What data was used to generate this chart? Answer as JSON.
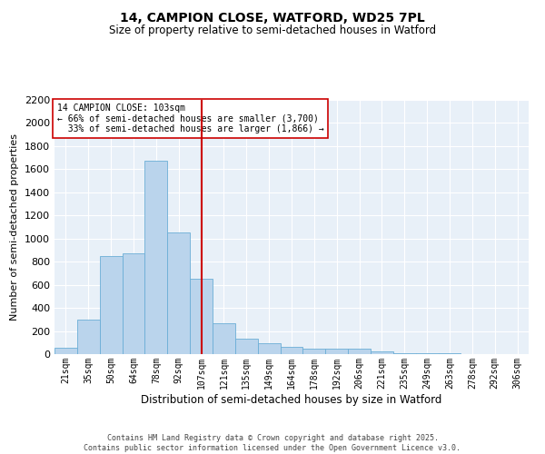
{
  "title_line1": "14, CAMPION CLOSE, WATFORD, WD25 7PL",
  "title_line2": "Size of property relative to semi-detached houses in Watford",
  "xlabel": "Distribution of semi-detached houses by size in Watford",
  "ylabel": "Number of semi-detached properties",
  "footer_line1": "Contains HM Land Registry data © Crown copyright and database right 2025.",
  "footer_line2": "Contains public sector information licensed under the Open Government Licence v3.0.",
  "categories": [
    "21sqm",
    "35sqm",
    "50sqm",
    "64sqm",
    "78sqm",
    "92sqm",
    "107sqm",
    "121sqm",
    "135sqm",
    "149sqm",
    "164sqm",
    "178sqm",
    "192sqm",
    "206sqm",
    "221sqm",
    "235sqm",
    "249sqm",
    "263sqm",
    "278sqm",
    "292sqm",
    "306sqm"
  ],
  "values": [
    55,
    300,
    850,
    870,
    1670,
    1050,
    650,
    270,
    130,
    95,
    65,
    50,
    50,
    50,
    25,
    5,
    5,
    5,
    3,
    0,
    3
  ],
  "bar_color": "#bad4ec",
  "bar_edge_color": "#6baed6",
  "property_size": "103sqm",
  "pct_smaller": 66,
  "pct_larger": 33,
  "n_smaller": 3700,
  "n_larger": 1866,
  "annotation_box_color": "#cc0000",
  "ylim": [
    0,
    2200
  ],
  "yticks": [
    0,
    200,
    400,
    600,
    800,
    1000,
    1200,
    1400,
    1600,
    1800,
    2000,
    2200
  ],
  "background_color": "#e8f0f8",
  "grid_color": "#ffffff",
  "vline_color": "#cc0000",
  "vline_x": 6.0
}
